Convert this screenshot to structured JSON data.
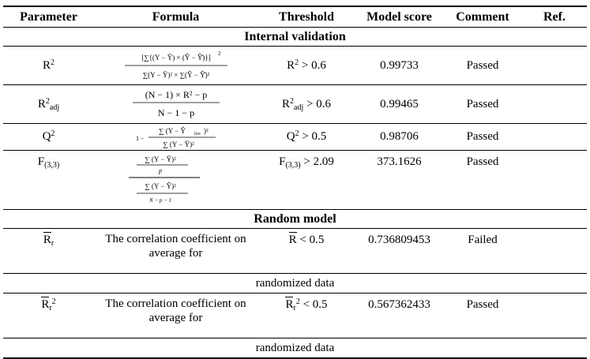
{
  "headers": [
    "Parameter",
    "Formula",
    "Threshold",
    "Model score",
    "Comment",
    "Ref."
  ],
  "sections": {
    "internal": "Internal validation",
    "random": "Random model"
  },
  "rows": {
    "r2": {
      "param_base": "R",
      "param_sup": "2",
      "threshold_base": "R",
      "threshold_sup": "2",
      "threshold_rest": " > 0.6",
      "score": "0.99733",
      "comment": "Passed"
    },
    "r2adj": {
      "param_base": "R",
      "param_sup": "2",
      "param_sub": "adj",
      "threshold_base": "R",
      "threshold_sup": "2",
      "threshold_sub": "adj",
      "threshold_rest": " > 0.6",
      "score": "0.99465",
      "comment": "Passed"
    },
    "q2": {
      "param_base": "Q",
      "param_sup": "2",
      "threshold_base": "Q",
      "threshold_sup": "2",
      "threshold_rest": " > 0.5",
      "score": "0.98706",
      "comment": "Passed"
    },
    "f": {
      "param_base": "F",
      "param_sub": "(3,3)",
      "threshold_base": "F",
      "threshold_sub": "(3,3)",
      "threshold_rest": " > 2.09",
      "score": "373.1626",
      "comment": "Passed"
    },
    "rr": {
      "param_base": "R",
      "param_sub": "r",
      "formula_text": "The correlation coefficient on average for",
      "threshold_base": "R",
      "threshold_rest": " < 0.5",
      "score": "0.736809453",
      "comment": "Failed",
      "continuation": "randomized data"
    },
    "rr2": {
      "param_base": "R",
      "param_sub": "r",
      "param_sup": "2",
      "formula_text": "The correlation coefficient on average for",
      "threshold_base": "R",
      "threshold_sub": "r",
      "threshold_sup": "2",
      "threshold_rest": " < 0.5",
      "score": "0.567362433",
      "comment": "Passed",
      "continuation": "randomized data"
    }
  },
  "formulas": {
    "r2": {
      "top": "[∑{(Y − Ȳ) × (Ŷ − Ŷ̄)}]",
      "top_sup": "2",
      "bottom": "∑(Y − Ȳ)² × ∑(Ŷ − Ŷ̄)²"
    },
    "r2adj": {
      "top": "(N − 1) × R² − p",
      "bottom": "N − 1 − p"
    },
    "q2": {
      "lead": "1 −",
      "top": "∑ (Y − Ŷ",
      "top_sub": "loo",
      "top_end": ")²",
      "bottom": "∑ (Y − Ȳ)²"
    },
    "f": {
      "top1": "∑ (Y − Ȳ)²",
      "bottom1": "p",
      "top2": "∑ (Y − Ŷ)²",
      "bottom2": "N − p − 1"
    }
  }
}
